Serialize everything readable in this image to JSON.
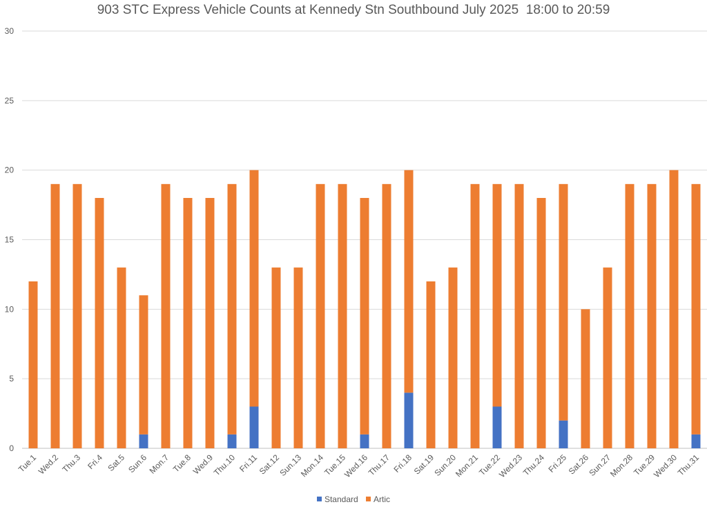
{
  "chart_data": {
    "type": "bar",
    "stacked": true,
    "title": "903 STC Express Vehicle Counts at Kennedy Stn Southbound July 2025  18:00 to 20:59",
    "xlabel": "",
    "ylabel": "",
    "ylim": [
      0,
      30
    ],
    "yticks": [
      0,
      5,
      10,
      15,
      20,
      25,
      30
    ],
    "grid": true,
    "legend": "bottom",
    "categories": [
      "Tue.1",
      "Wed.2",
      "Thu.3",
      "Fri.4",
      "Sat.5",
      "Sun.6",
      "Mon.7",
      "Tue.8",
      "Wed.9",
      "Thu.10",
      "Fri.11",
      "Sat.12",
      "Sun.13",
      "Mon.14",
      "Tue.15",
      "Wed.16",
      "Thu.17",
      "Fri.18",
      "Sat.19",
      "Sun.20",
      "Mon.21",
      "Tue.22",
      "Wed.23",
      "Thu.24",
      "Fri.25",
      "Sat.26",
      "Sun.27",
      "Mon.28",
      "Tue.29",
      "Wed.30",
      "Thu.31"
    ],
    "series": [
      {
        "name": "Standard",
        "color": "#4472C4",
        "values": [
          0,
          0,
          0,
          0,
          0,
          1,
          0,
          0,
          0,
          1,
          3,
          0,
          0,
          0,
          0,
          1,
          0,
          4,
          0,
          0,
          0,
          3,
          0,
          0,
          2,
          0,
          0,
          0,
          0,
          0,
          1
        ]
      },
      {
        "name": "Artic",
        "color": "#ED7D31",
        "values": [
          12,
          19,
          19,
          18,
          13,
          10,
          19,
          18,
          18,
          18,
          17,
          13,
          13,
          19,
          19,
          17,
          19,
          16,
          12,
          13,
          19,
          16,
          19,
          18,
          17,
          10,
          13,
          19,
          19,
          20,
          18
        ]
      }
    ]
  }
}
